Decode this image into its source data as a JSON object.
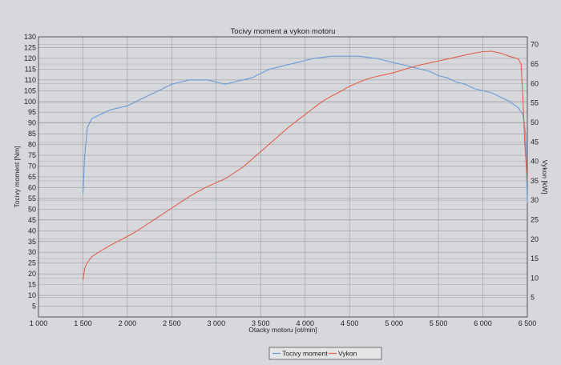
{
  "chart_data": {
    "type": "line",
    "title": "Tocivy moment a vykon motoru",
    "xlabel": "Otacky motoru [ot/min]",
    "ylabel_left": "Tocivy moment [Nm]",
    "ylabel_right": "Vykon [kW]",
    "xlim": [
      1000,
      6500
    ],
    "ylim_left": [
      0,
      130
    ],
    "ylim_right": [
      0,
      72
    ],
    "x_ticks": [
      "1 000",
      "1 500",
      "2 000",
      "2 500",
      "3 000",
      "3 500",
      "4 000",
      "4 500",
      "5 000",
      "5 500",
      "6 000",
      "6 500"
    ],
    "y_ticks_left": [
      "5",
      "10",
      "15",
      "20",
      "25",
      "30",
      "35",
      "40",
      "45",
      "50",
      "55",
      "60",
      "65",
      "70",
      "75",
      "80",
      "85",
      "90",
      "95",
      "100",
      "105",
      "110",
      "115",
      "120",
      "125",
      "130"
    ],
    "y_ticks_right": [
      "5",
      "10",
      "15",
      "20",
      "25",
      "30",
      "35",
      "40",
      "45",
      "50",
      "55",
      "60",
      "65",
      "70"
    ],
    "grid": true,
    "legend_position": "bottom-right",
    "series": [
      {
        "name": "Tocivy moment",
        "axis": "left",
        "color": "#6a9ad6",
        "points": [
          [
            1500,
            57
          ],
          [
            1520,
            75
          ],
          [
            1550,
            88
          ],
          [
            1600,
            92
          ],
          [
            1700,
            94
          ],
          [
            1800,
            96
          ],
          [
            1900,
            97
          ],
          [
            2000,
            98
          ],
          [
            2100,
            100
          ],
          [
            2200,
            102
          ],
          [
            2300,
            104
          ],
          [
            2400,
            106
          ],
          [
            2500,
            108
          ],
          [
            2600,
            109
          ],
          [
            2700,
            110
          ],
          [
            2800,
            110
          ],
          [
            2900,
            110
          ],
          [
            3000,
            109
          ],
          [
            3100,
            108
          ],
          [
            3200,
            109
          ],
          [
            3300,
            110
          ],
          [
            3400,
            111
          ],
          [
            3500,
            113
          ],
          [
            3600,
            115
          ],
          [
            3700,
            116
          ],
          [
            3800,
            117
          ],
          [
            3900,
            118
          ],
          [
            4000,
            119
          ],
          [
            4100,
            120
          ],
          [
            4200,
            120.5
          ],
          [
            4300,
            121
          ],
          [
            4400,
            121
          ],
          [
            4500,
            121
          ],
          [
            4600,
            121
          ],
          [
            4700,
            120.5
          ],
          [
            4800,
            120
          ],
          [
            4900,
            119
          ],
          [
            5000,
            118
          ],
          [
            5100,
            117
          ],
          [
            5200,
            116
          ],
          [
            5300,
            115
          ],
          [
            5400,
            114
          ],
          [
            5500,
            112
          ],
          [
            5600,
            111
          ],
          [
            5700,
            109
          ],
          [
            5800,
            108
          ],
          [
            5900,
            106
          ],
          [
            6000,
            105
          ],
          [
            6100,
            104
          ],
          [
            6200,
            102
          ],
          [
            6300,
            100
          ],
          [
            6400,
            97
          ],
          [
            6450,
            94
          ],
          [
            6480,
            85
          ],
          [
            6500,
            53
          ]
        ]
      },
      {
        "name": "Vykon",
        "axis": "right",
        "color": "#e0604a",
        "points": [
          [
            1500,
            9.5
          ],
          [
            1520,
            12.5
          ],
          [
            1550,
            14
          ],
          [
            1600,
            15.5
          ],
          [
            1700,
            17
          ],
          [
            1800,
            18.3
          ],
          [
            1900,
            19.5
          ],
          [
            2000,
            20.7
          ],
          [
            2100,
            22
          ],
          [
            2200,
            23.5
          ],
          [
            2300,
            25
          ],
          [
            2400,
            26.5
          ],
          [
            2500,
            28
          ],
          [
            2600,
            29.5
          ],
          [
            2700,
            31
          ],
          [
            2800,
            32.3
          ],
          [
            2900,
            33.5
          ],
          [
            3000,
            34.5
          ],
          [
            3100,
            35.5
          ],
          [
            3200,
            37
          ],
          [
            3300,
            38.5
          ],
          [
            3400,
            40.5
          ],
          [
            3500,
            42.5
          ],
          [
            3600,
            44.5
          ],
          [
            3700,
            46.5
          ],
          [
            3800,
            48.5
          ],
          [
            3900,
            50.3
          ],
          [
            4000,
            52
          ],
          [
            4100,
            53.8
          ],
          [
            4200,
            55.5
          ],
          [
            4300,
            56.8
          ],
          [
            4400,
            58
          ],
          [
            4500,
            59.3
          ],
          [
            4600,
            60.3
          ],
          [
            4700,
            61.2
          ],
          [
            4800,
            61.8
          ],
          [
            4900,
            62.3
          ],
          [
            5000,
            62.8
          ],
          [
            5100,
            63.5
          ],
          [
            5200,
            64.2
          ],
          [
            5300,
            64.8
          ],
          [
            5400,
            65.3
          ],
          [
            5500,
            65.8
          ],
          [
            5600,
            66.3
          ],
          [
            5700,
            66.8
          ],
          [
            5800,
            67.3
          ],
          [
            5900,
            67.8
          ],
          [
            6000,
            68.2
          ],
          [
            6100,
            68.3
          ],
          [
            6200,
            67.8
          ],
          [
            6300,
            67
          ],
          [
            6400,
            66.3
          ],
          [
            6430,
            65
          ],
          [
            6450,
            56
          ],
          [
            6470,
            45
          ],
          [
            6500,
            35
          ]
        ]
      }
    ]
  }
}
